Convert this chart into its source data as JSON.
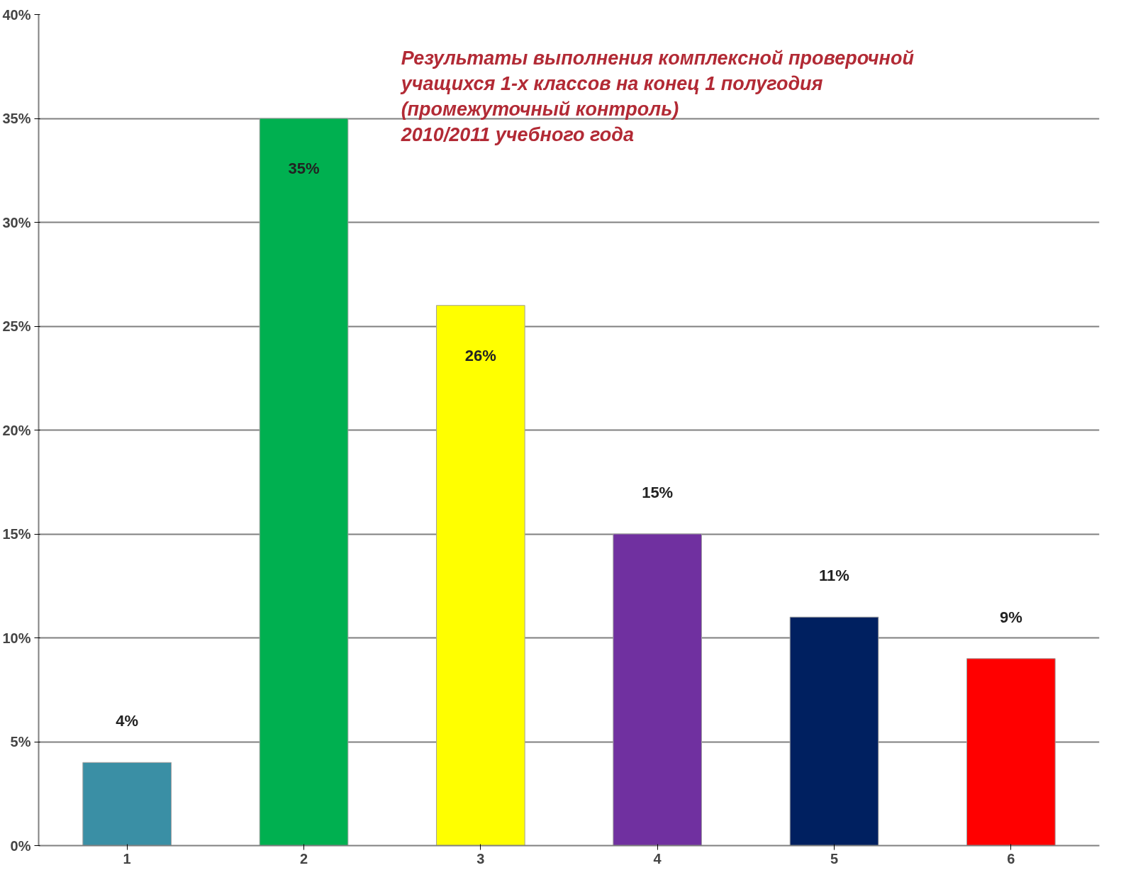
{
  "chart_data": {
    "type": "bar",
    "title": "Результаты выполнения комплексной проверочной\nучащихся 1-х классов на конец 1 полугодия\n(промежуточный контроль)\n 2010/2011 учебного года",
    "categories": [
      "1",
      "2",
      "3",
      "4",
      "5",
      "6"
    ],
    "values": [
      4,
      35,
      26,
      15,
      11,
      9
    ],
    "colors": [
      "#3a8fa5",
      "#00b050",
      "#ffff00",
      "#7030a0",
      "#002060",
      "#ff0000"
    ],
    "value_labels": [
      "4%",
      "35%",
      "26%",
      "15%",
      "11%",
      "9%"
    ],
    "ylim": [
      0,
      40
    ],
    "yticks": [
      {
        "value": 0,
        "label": "0%"
      },
      {
        "value": 5,
        "label": "5%"
      },
      {
        "value": 10,
        "label": "10%"
      },
      {
        "value": 15,
        "label": "15%"
      },
      {
        "value": 20,
        "label": "20%"
      },
      {
        "value": 25,
        "label": "25%"
      },
      {
        "value": 30,
        "label": "30%"
      },
      {
        "value": 35,
        "label": "35%"
      },
      {
        "value": 40,
        "label": "40%"
      }
    ],
    "grid": "y"
  }
}
